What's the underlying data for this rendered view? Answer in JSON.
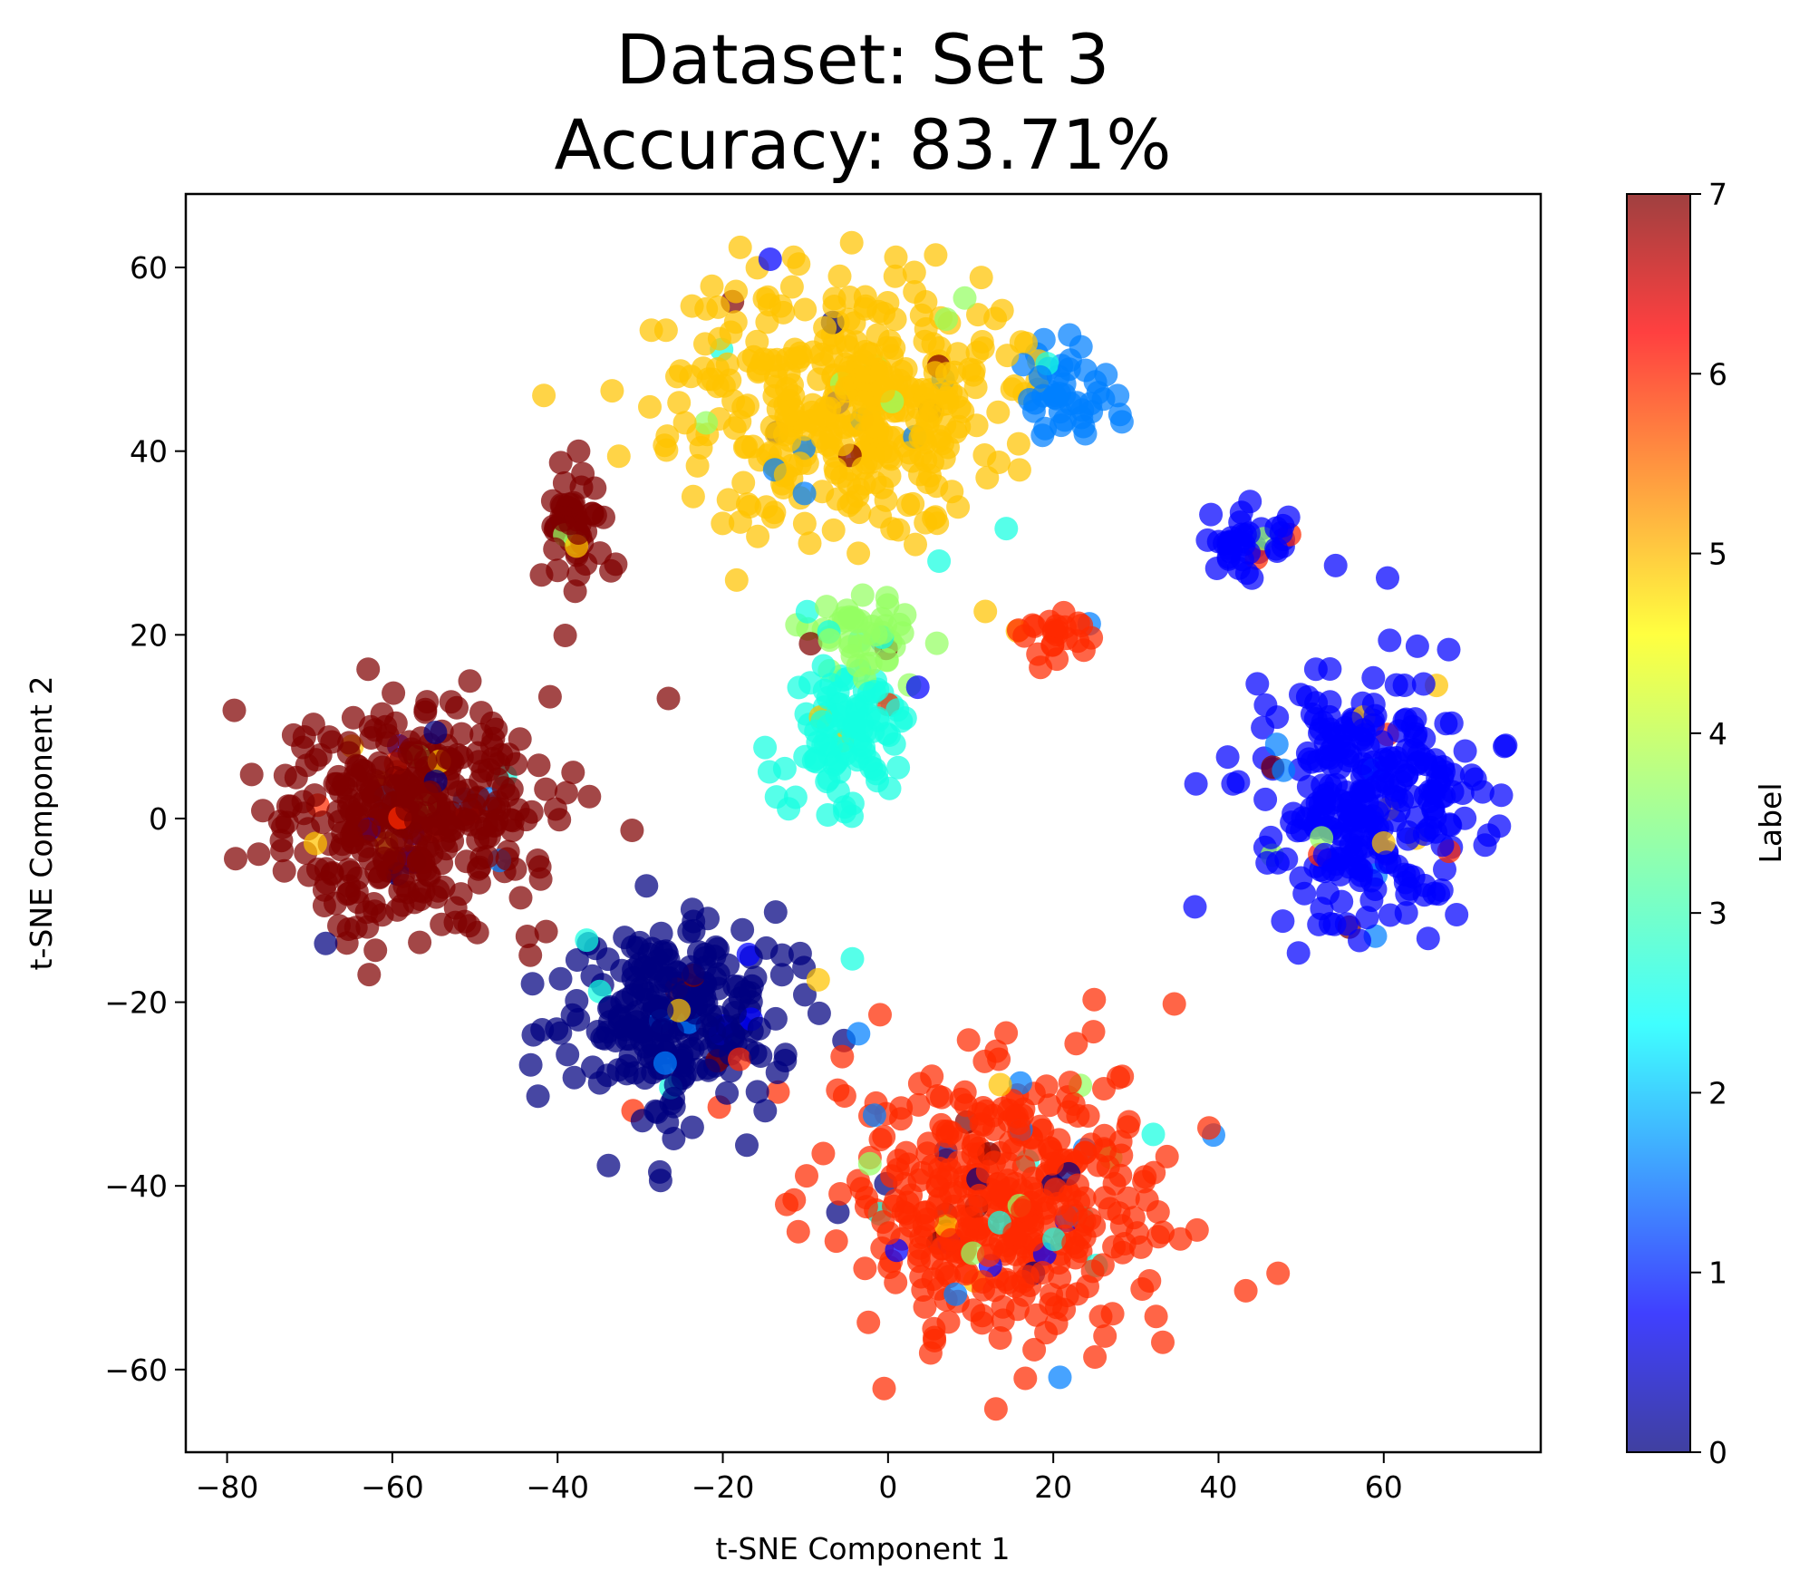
{
  "chart_data": {
    "type": "scatter",
    "title": "Dataset: Set 3",
    "subtitle": "Accuracy: 83.71%",
    "xlabel": "t-SNE Component 1",
    "ylabel": "t-SNE Component 2",
    "xlim": [
      -85,
      79
    ],
    "ylim": [
      -69,
      68
    ],
    "xticks": [
      -80,
      -60,
      -40,
      -20,
      0,
      20,
      40,
      60
    ],
    "yticks": [
      -60,
      -40,
      -20,
      0,
      20,
      40,
      60
    ],
    "grid": false,
    "colorbar": {
      "label": "Label",
      "min": 0,
      "max": 7,
      "ticks": [
        0,
        1,
        2,
        3,
        4,
        5,
        6,
        7
      ],
      "colormap": "jet",
      "colors": [
        "#000080",
        "#0000ff",
        "#0080ff",
        "#15ffe1",
        "#94ff63",
        "#ffc400",
        "#ff2900",
        "#800000"
      ]
    },
    "clusters": [
      {
        "label": 7,
        "center": [
          -58,
          1
        ],
        "spread": [
          11,
          8
        ],
        "count": 380
      },
      {
        "label": 7,
        "center": [
          -38,
          32
        ],
        "spread": [
          2.5,
          4
        ],
        "count": 60
      },
      {
        "label": 5,
        "center": [
          -5,
          45
        ],
        "spread": [
          13,
          9
        ],
        "count": 420
      },
      {
        "label": 2,
        "center": [
          22,
          47
        ],
        "spread": [
          3.5,
          4
        ],
        "count": 45
      },
      {
        "label": 3,
        "center": [
          -5,
          10
        ],
        "spread": [
          5,
          5
        ],
        "count": 110
      },
      {
        "label": 4,
        "center": [
          -3,
          20
        ],
        "spread": [
          4,
          3
        ],
        "count": 45
      },
      {
        "label": 0,
        "center": [
          -25,
          -22
        ],
        "spread": [
          10,
          7
        ],
        "count": 260
      },
      {
        "label": 6,
        "center": [
          15,
          -42
        ],
        "spread": [
          13,
          10
        ],
        "count": 420
      },
      {
        "label": 1,
        "center": [
          58,
          2
        ],
        "spread": [
          9,
          9
        ],
        "count": 300
      },
      {
        "label": 1,
        "center": [
          44,
          30
        ],
        "spread": [
          3.5,
          2.5
        ],
        "count": 40
      },
      {
        "label": 6,
        "center": [
          21,
          20
        ],
        "spread": [
          3,
          2
        ],
        "count": 25
      }
    ]
  }
}
